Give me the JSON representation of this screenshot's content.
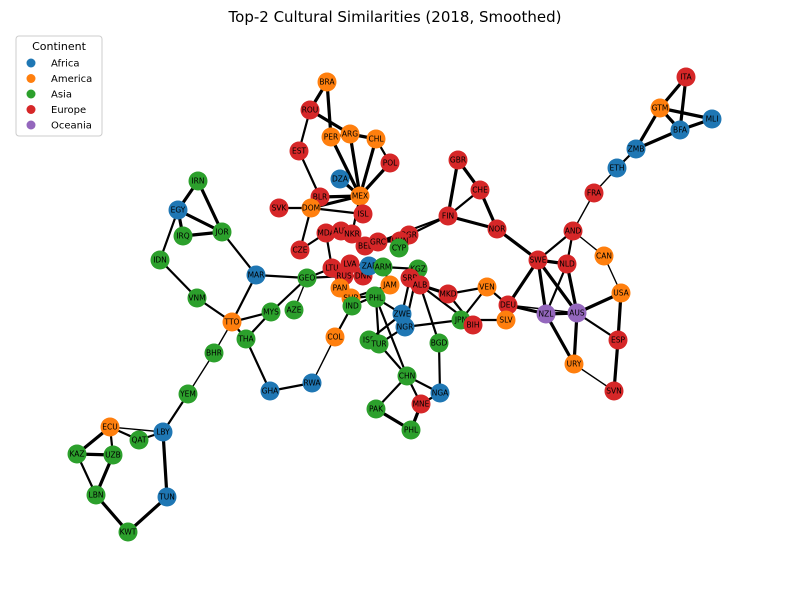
{
  "title": "Top-2 Cultural Similarities (2018, Smoothed)",
  "legend": {
    "title": "Continent",
    "items": [
      {
        "label": "Africa",
        "color": "#1f77b4"
      },
      {
        "label": "America",
        "color": "#ff7f0e"
      },
      {
        "label": "Asia",
        "color": "#2ca02c"
      },
      {
        "label": "Europe",
        "color": "#d62728"
      },
      {
        "label": "Oceania",
        "color": "#9467bd"
      }
    ]
  },
  "nodes": [
    {
      "id": "ITA",
      "continent": "Europe"
    },
    {
      "id": "GTM",
      "continent": "America"
    },
    {
      "id": "MLI",
      "continent": "Africa"
    },
    {
      "id": "BFA",
      "continent": "Africa"
    },
    {
      "id": "ZMB",
      "continent": "Africa"
    },
    {
      "id": "ETH",
      "continent": "Africa"
    },
    {
      "id": "FRA",
      "continent": "Europe"
    },
    {
      "id": "BRA",
      "continent": "America"
    },
    {
      "id": "ROU",
      "continent": "Europe"
    },
    {
      "id": "PER",
      "continent": "America"
    },
    {
      "id": "ARG",
      "continent": "America"
    },
    {
      "id": "CHL",
      "continent": "America"
    },
    {
      "id": "EST",
      "continent": "Europe"
    },
    {
      "id": "POL",
      "continent": "Europe"
    },
    {
      "id": "GBR",
      "continent": "Europe"
    },
    {
      "id": "CHE",
      "continent": "Europe"
    },
    {
      "id": "DZA",
      "continent": "Africa"
    },
    {
      "id": "BLR",
      "continent": "Europe"
    },
    {
      "id": "MEX",
      "continent": "America"
    },
    {
      "id": "SVK",
      "continent": "Europe"
    },
    {
      "id": "DOM",
      "continent": "America"
    },
    {
      "id": "ISL",
      "continent": "Europe"
    },
    {
      "id": "FIN",
      "continent": "Europe"
    },
    {
      "id": "NOR",
      "continent": "Europe"
    },
    {
      "id": "AND",
      "continent": "Europe"
    },
    {
      "id": "IRN",
      "continent": "Asia"
    },
    {
      "id": "EGY",
      "continent": "Africa"
    },
    {
      "id": "IRQ",
      "continent": "Asia"
    },
    {
      "id": "JOR",
      "continent": "Asia"
    },
    {
      "id": "IDN",
      "continent": "Asia"
    },
    {
      "id": "MAR",
      "continent": "Africa"
    },
    {
      "id": "CZE",
      "continent": "Europe"
    },
    {
      "id": "MDA",
      "continent": "Europe"
    },
    {
      "id": "AUT",
      "continent": "Europe"
    },
    {
      "id": "NLD2",
      "label": "NKR",
      "continent": "Europe"
    },
    {
      "id": "BEL",
      "continent": "Europe"
    },
    {
      "id": "GRC",
      "continent": "Europe"
    },
    {
      "id": "BGR",
      "continent": "Europe"
    },
    {
      "id": "HUN",
      "continent": "Europe"
    },
    {
      "id": "CYP",
      "label": "CYP",
      "continent": "Asia"
    },
    {
      "id": "SWE",
      "continent": "Europe"
    },
    {
      "id": "NLD",
      "continent": "Europe"
    },
    {
      "id": "CAN",
      "continent": "America"
    },
    {
      "id": "GEO",
      "continent": "Asia"
    },
    {
      "id": "LTU",
      "continent": "Europe"
    },
    {
      "id": "LVA",
      "label": "LVA",
      "continent": "Europe"
    },
    {
      "id": "RUS",
      "continent": "Europe"
    },
    {
      "id": "DNK",
      "continent": "Europe"
    },
    {
      "id": "ZAF",
      "label": "ZAF",
      "continent": "Africa"
    },
    {
      "id": "ARM",
      "label": "ARM",
      "continent": "Asia"
    },
    {
      "id": "KGZ",
      "continent": "Asia"
    },
    {
      "id": "SRB",
      "label": "SRB",
      "continent": "Europe"
    },
    {
      "id": "ALB",
      "continent": "Europe"
    },
    {
      "id": "VNM",
      "continent": "Asia"
    },
    {
      "id": "TTO",
      "continent": "America"
    },
    {
      "id": "MYS",
      "continent": "Asia"
    },
    {
      "id": "AZE",
      "continent": "Asia"
    },
    {
      "id": "PAN",
      "continent": "America"
    },
    {
      "id": "JAM",
      "continent": "America"
    },
    {
      "id": "SUR",
      "continent": "America"
    },
    {
      "id": "IND",
      "continent": "Asia"
    },
    {
      "id": "SGP",
      "continent": "Asia"
    },
    {
      "id": "PHL2",
      "label": "PHL",
      "continent": "Asia"
    },
    {
      "id": "MKD",
      "continent": "Europe"
    },
    {
      "id": "VEN",
      "continent": "America"
    },
    {
      "id": "DEU",
      "continent": "Europe"
    },
    {
      "id": "SLV",
      "continent": "America"
    },
    {
      "id": "USA",
      "continent": "America"
    },
    {
      "id": "NZL",
      "continent": "Oceania"
    },
    {
      "id": "AUS",
      "continent": "Oceania"
    },
    {
      "id": "ZWE",
      "continent": "Africa"
    },
    {
      "id": "NGR",
      "label": "NGR",
      "continent": "Africa"
    },
    {
      "id": "JPN",
      "continent": "Asia"
    },
    {
      "id": "BIH",
      "continent": "Europe"
    },
    {
      "id": "THA",
      "continent": "Asia"
    },
    {
      "id": "BHR",
      "continent": "Asia"
    },
    {
      "id": "COL",
      "continent": "America"
    },
    {
      "id": "ISR",
      "continent": "Asia"
    },
    {
      "id": "TUR",
      "continent": "Asia"
    },
    {
      "id": "BGD",
      "continent": "Asia"
    },
    {
      "id": "ESP",
      "continent": "Europe"
    },
    {
      "id": "URY",
      "continent": "America"
    },
    {
      "id": "SVN",
      "continent": "Europe"
    },
    {
      "id": "YEM",
      "continent": "Asia"
    },
    {
      "id": "GHA",
      "continent": "Africa"
    },
    {
      "id": "RWA",
      "continent": "Africa"
    },
    {
      "id": "CHN",
      "continent": "Asia"
    },
    {
      "id": "NGA",
      "continent": "Africa"
    },
    {
      "id": "PAK",
      "continent": "Asia"
    },
    {
      "id": "MNE",
      "continent": "Europe"
    },
    {
      "id": "PHL",
      "continent": "Asia"
    },
    {
      "id": "ECU",
      "continent": "America"
    },
    {
      "id": "LBY",
      "continent": "Africa"
    },
    {
      "id": "QAT",
      "continent": "Asia"
    },
    {
      "id": "KAZ",
      "continent": "Asia"
    },
    {
      "id": "UZB",
      "continent": "Asia"
    },
    {
      "id": "LBN",
      "continent": "Asia"
    },
    {
      "id": "TUN",
      "continent": "Africa"
    },
    {
      "id": "KWT",
      "continent": "Asia"
    }
  ],
  "edges": [
    [
      "ITA",
      "GTM",
      3
    ],
    [
      "ITA",
      "BFA",
      3
    ],
    [
      "GTM",
      "MLI",
      3
    ],
    [
      "GTM",
      "BFA",
      3
    ],
    [
      "MLI",
      "BFA",
      3
    ],
    [
      "GTM",
      "ZMB",
      3
    ],
    [
      "BFA",
      "ZMB",
      3
    ],
    [
      "ZMB",
      "ETH",
      2
    ],
    [
      "ETH",
      "FRA",
      1
    ],
    [
      "FRA",
      "AND",
      1
    ],
    [
      "BRA",
      "ROU",
      3
    ],
    [
      "BRA",
      "PER",
      3
    ],
    [
      "ROU",
      "ARG",
      3
    ],
    [
      "ROU",
      "EST",
      2
    ],
    [
      "PER",
      "MEX",
      3
    ],
    [
      "ARG",
      "MEX",
      3
    ],
    [
      "ARG",
      "CHL",
      3
    ],
    [
      "CHL",
      "MEX",
      3
    ],
    [
      "CHL",
      "POL",
      2
    ],
    [
      "POL",
      "MEX",
      3
    ],
    [
      "PER",
      "ARG",
      2
    ],
    [
      "EST",
      "BLR",
      2
    ],
    [
      "BLR",
      "MEX",
      3
    ],
    [
      "DZA",
      "MEX",
      3
    ],
    [
      "BLR",
      "DOM",
      2
    ],
    [
      "SVK",
      "DOM",
      2
    ],
    [
      "DOM",
      "MEX",
      3
    ],
    [
      "DOM",
      "CZE",
      2
    ],
    [
      "DOM",
      "ISL",
      2
    ],
    [
      "ISL",
      "MEX",
      3
    ],
    [
      "MEX",
      "NLD2",
      2
    ],
    [
      "GBR",
      "CHE",
      3
    ],
    [
      "GBR",
      "FIN",
      3
    ],
    [
      "CHE",
      "FIN",
      2
    ],
    [
      "CHE",
      "NOR",
      3
    ],
    [
      "FIN",
      "NOR",
      3
    ],
    [
      "FIN",
      "BGR",
      2
    ],
    [
      "FIN",
      "GRC",
      2
    ],
    [
      "NOR",
      "SWE",
      3
    ],
    [
      "AND",
      "SWE",
      2
    ],
    [
      "AND",
      "NLD",
      2
    ],
    [
      "AND",
      "CAN",
      1
    ],
    [
      "CAN",
      "USA",
      1
    ],
    [
      "SWE",
      "NLD",
      3
    ],
    [
      "SWE",
      "NZL",
      3
    ],
    [
      "SWE",
      "AUS",
      3
    ],
    [
      "SWE",
      "DEU",
      3
    ],
    [
      "NLD",
      "AUS",
      3
    ],
    [
      "NLD",
      "NZL",
      2
    ],
    [
      "USA",
      "AUS",
      3
    ],
    [
      "USA",
      "ESP",
      3
    ],
    [
      "NZL",
      "AUS",
      3
    ],
    [
      "AUS",
      "ESP",
      2
    ],
    [
      "AUS",
      "URY",
      3
    ],
    [
      "NZL",
      "URY",
      3
    ],
    [
      "ESP",
      "SVN",
      3
    ],
    [
      "URY",
      "SVN",
      1
    ],
    [
      "DEU",
      "AUS",
      1
    ],
    [
      "DEU",
      "NZL",
      3
    ],
    [
      "IRN",
      "EGY",
      3
    ],
    [
      "IRN",
      "JOR",
      3
    ],
    [
      "EGY",
      "JOR",
      3
    ],
    [
      "EGY",
      "IRQ",
      3
    ],
    [
      "IRQ",
      "JOR",
      3
    ],
    [
      "EGY",
      "IDN",
      2
    ],
    [
      "IDN",
      "VNM",
      2
    ],
    [
      "VNM",
      "TTO",
      2
    ],
    [
      "JOR",
      "MAR",
      2
    ],
    [
      "MAR",
      "GEO",
      2
    ],
    [
      "MAR",
      "TTO",
      2
    ],
    [
      "TTO",
      "MYS",
      2
    ],
    [
      "TTO",
      "THA",
      2
    ],
    [
      "TTO",
      "BHR",
      1
    ],
    [
      "MYS",
      "THA",
      2
    ],
    [
      "MYS",
      "GEO",
      2
    ],
    [
      "GEO",
      "AZE",
      1
    ],
    [
      "THA",
      "GHA",
      2
    ],
    [
      "GHA",
      "RWA",
      2
    ],
    [
      "RWA",
      "COL",
      1
    ],
    [
      "COL",
      "IND",
      2
    ],
    [
      "BHR",
      "YEM",
      1
    ],
    [
      "YEM",
      "LBY",
      2
    ],
    [
      "LBY",
      "ECU",
      1
    ],
    [
      "LBY",
      "QAT",
      2
    ],
    [
      "LBY",
      "TUN",
      3
    ],
    [
      "ECU",
      "UZB",
      2
    ],
    [
      "ECU",
      "QAT",
      2
    ],
    [
      "ECU",
      "KAZ",
      3
    ],
    [
      "KAZ",
      "UZB",
      3
    ],
    [
      "KAZ",
      "LBN",
      2
    ],
    [
      "UZB",
      "LBN",
      3
    ],
    [
      "LBN",
      "KWT",
      3
    ],
    [
      "KWT",
      "TUN",
      3
    ],
    [
      "MDA",
      "AUT",
      3
    ],
    [
      "MDA",
      "LTU",
      2
    ],
    [
      "AUT",
      "NLD2",
      3
    ],
    [
      "AUT",
      "BEL",
      2
    ],
    [
      "NLD2",
      "BEL",
      2
    ],
    [
      "BEL",
      "GRC",
      3
    ],
    [
      "GRC",
      "BGR",
      3
    ],
    [
      "GRC",
      "HUN",
      2
    ],
    [
      "HUN",
      "BGR",
      2
    ],
    [
      "BGR",
      "CYP",
      2
    ],
    [
      "CZE",
      "MDA",
      2
    ],
    [
      "GEO",
      "LTU",
      2
    ],
    [
      "GEO",
      "RUS",
      2
    ],
    [
      "LTU",
      "RUS",
      2
    ],
    [
      "RUS",
      "DNK",
      2
    ],
    [
      "DNK",
      "LVA",
      2
    ],
    [
      "LVA",
      "ZAF",
      2
    ],
    [
      "ZAF",
      "ARM",
      2
    ],
    [
      "ARM",
      "KGZ",
      2
    ],
    [
      "KGZ",
      "SRB",
      2
    ],
    [
      "SRB",
      "ALB",
      2
    ],
    [
      "ALB",
      "MKD",
      3
    ],
    [
      "ALB",
      "BIH",
      2
    ],
    [
      "PAN",
      "SUR",
      2
    ],
    [
      "PAN",
      "IND",
      2
    ],
    [
      "SUR",
      "JAM",
      2
    ],
    [
      "JAM",
      "ARM",
      2
    ],
    [
      "IND",
      "SGP",
      2
    ],
    [
      "SGP",
      "PHL2",
      2
    ],
    [
      "SUR",
      "SGP",
      2
    ],
    [
      "MKD",
      "VEN",
      2
    ],
    [
      "MKD",
      "BIH",
      2
    ],
    [
      "VEN",
      "DEU",
      2
    ],
    [
      "VEN",
      "JPN",
      2
    ],
    [
      "DEU",
      "SLV",
      2
    ],
    [
      "SLV",
      "JPN",
      2
    ],
    [
      "JPN",
      "BIH",
      2
    ],
    [
      "JPN",
      "NGR",
      2
    ],
    [
      "ZWE",
      "NGR",
      2
    ],
    [
      "ZWE",
      "PHL2",
      2
    ],
    [
      "ZWE",
      "ISR",
      2
    ],
    [
      "NGR",
      "TUR",
      2
    ],
    [
      "ISR",
      "TUR",
      2
    ],
    [
      "TUR",
      "CHN",
      2
    ],
    [
      "TUR",
      "PHL2",
      2
    ],
    [
      "CHN",
      "NGA",
      2
    ],
    [
      "CHN",
      "PAK",
      2
    ],
    [
      "CHN",
      "MNE",
      2
    ],
    [
      "NGA",
      "MNE",
      2
    ],
    [
      "NGA",
      "BGD",
      2
    ],
    [
      "BGD",
      "ALB",
      2
    ],
    [
      "PAK",
      "PHL",
      3
    ],
    [
      "MNE",
      "PHL",
      3
    ],
    [
      "PHL2",
      "CHN",
      2
    ],
    [
      "SRB",
      "ZWE",
      2
    ],
    [
      "KGZ",
      "NGR",
      2
    ]
  ]
}
